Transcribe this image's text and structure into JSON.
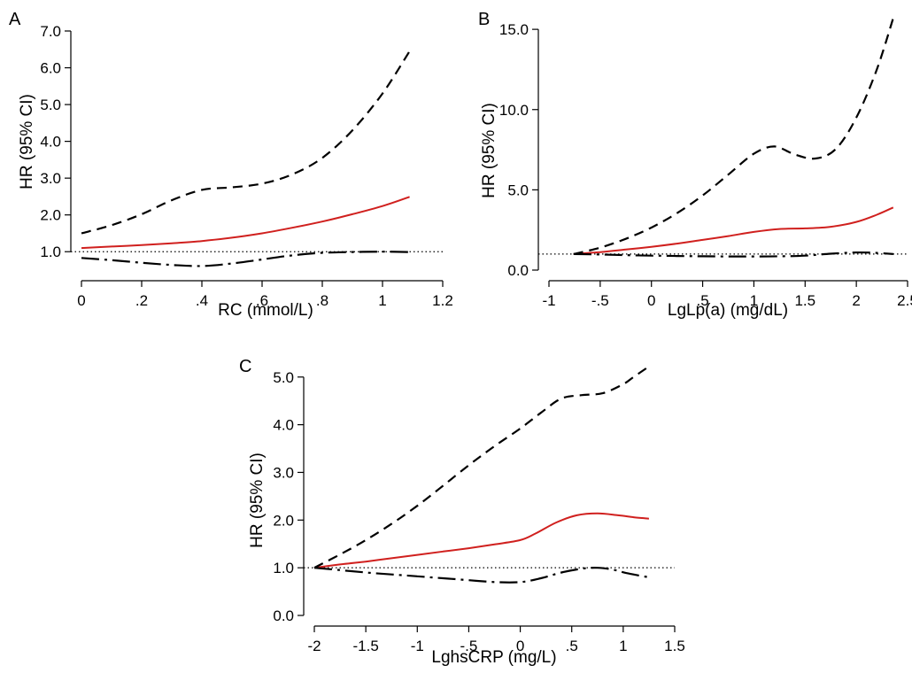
{
  "chart_data": [
    {
      "type": "line",
      "panel_label": "A",
      "xlabel": "RC (mmol/L)",
      "ylabel": "HR (95% CI)",
      "xlim": [
        0,
        1.2
      ],
      "ylim": [
        0.5,
        7.0
      ],
      "xticks": [
        {
          "v": 0,
          "label": "0"
        },
        {
          "v": 0.2,
          "label": ".2"
        },
        {
          "v": 0.4,
          "label": ".4"
        },
        {
          "v": 0.6,
          "label": ".6"
        },
        {
          "v": 0.8,
          "label": ".8"
        },
        {
          "v": 1.0,
          "label": "1"
        },
        {
          "v": 1.2,
          "label": "1.2"
        }
      ],
      "yticks": [
        {
          "v": 1,
          "label": "1.0"
        },
        {
          "v": 2,
          "label": "2.0"
        },
        {
          "v": 3,
          "label": "3.0"
        },
        {
          "v": 4,
          "label": "4.0"
        },
        {
          "v": 5,
          "label": "5.0"
        },
        {
          "v": 6,
          "label": "6.0"
        },
        {
          "v": 7,
          "label": "7.0"
        }
      ],
      "reference_line": 1.0,
      "series": [
        {
          "role": "hr",
          "style": "solid",
          "color": "#d0201e",
          "x": [
            0,
            0.1,
            0.2,
            0.3,
            0.4,
            0.5,
            0.6,
            0.7,
            0.8,
            0.9,
            1.0,
            1.09
          ],
          "y": [
            1.1,
            1.14,
            1.18,
            1.23,
            1.29,
            1.38,
            1.5,
            1.65,
            1.82,
            2.02,
            2.24,
            2.49
          ]
        },
        {
          "role": "upper",
          "style": "dashed",
          "color": "#000000",
          "x": [
            0,
            0.1,
            0.2,
            0.3,
            0.4,
            0.5,
            0.6,
            0.7,
            0.8,
            0.9,
            1.0,
            1.09
          ],
          "y": [
            1.5,
            1.72,
            2.02,
            2.4,
            2.68,
            2.75,
            2.85,
            3.1,
            3.55,
            4.3,
            5.3,
            6.45
          ]
        },
        {
          "role": "lower",
          "style": "dashdot",
          "color": "#000000",
          "x": [
            0,
            0.1,
            0.2,
            0.3,
            0.4,
            0.5,
            0.6,
            0.7,
            0.8,
            0.9,
            1.0,
            1.09
          ],
          "y": [
            0.83,
            0.77,
            0.7,
            0.64,
            0.61,
            0.68,
            0.79,
            0.9,
            0.97,
            0.99,
            1.0,
            0.99
          ]
        }
      ]
    },
    {
      "type": "line",
      "panel_label": "B",
      "xlabel": "LgLp(a) (mg/dL)",
      "ylabel": "HR (95% CI)",
      "xlim": [
        -1,
        2.5
      ],
      "ylim": [
        0,
        16
      ],
      "xticks": [
        {
          "v": -1,
          "label": "-1"
        },
        {
          "v": -0.5,
          "label": "-.5"
        },
        {
          "v": 0,
          "label": "0"
        },
        {
          "v": 0.5,
          "label": ".5"
        },
        {
          "v": 1,
          "label": "1"
        },
        {
          "v": 1.5,
          "label": "1.5"
        },
        {
          "v": 2,
          "label": "2"
        },
        {
          "v": 2.5,
          "label": "2.5"
        }
      ],
      "yticks": [
        {
          "v": 0,
          "label": "0.0"
        },
        {
          "v": 5,
          "label": "5.0"
        },
        {
          "v": 10,
          "label": "10.0"
        },
        {
          "v": 15,
          "label": "15.0"
        }
      ],
      "reference_line": 1.0,
      "series": [
        {
          "role": "hr",
          "style": "solid",
          "color": "#d0201e",
          "x": [
            -0.76,
            -0.5,
            -0.25,
            0,
            0.25,
            0.5,
            0.75,
            1.0,
            1.25,
            1.5,
            1.75,
            2.0,
            2.2,
            2.36
          ],
          "y": [
            1.0,
            1.12,
            1.28,
            1.45,
            1.65,
            1.88,
            2.12,
            2.38,
            2.56,
            2.6,
            2.7,
            3.0,
            3.45,
            3.9
          ]
        },
        {
          "role": "upper",
          "style": "dashed",
          "color": "#000000",
          "x": [
            -0.76,
            -0.5,
            -0.25,
            0,
            0.25,
            0.5,
            0.75,
            1.0,
            1.2,
            1.4,
            1.6,
            1.8,
            2.0,
            2.2,
            2.36
          ],
          "y": [
            1.0,
            1.4,
            1.95,
            2.65,
            3.55,
            4.65,
            5.95,
            7.25,
            7.7,
            7.2,
            6.95,
            7.55,
            9.5,
            12.5,
            15.7
          ]
        },
        {
          "role": "lower",
          "style": "dashdot",
          "color": "#000000",
          "x": [
            -0.76,
            -0.5,
            -0.25,
            0,
            0.25,
            0.5,
            0.75,
            1.0,
            1.25,
            1.5,
            1.75,
            2.0,
            2.2,
            2.36
          ],
          "y": [
            1.0,
            0.97,
            0.93,
            0.9,
            0.88,
            0.86,
            0.85,
            0.85,
            0.86,
            0.9,
            1.02,
            1.1,
            1.07,
            1.0
          ]
        }
      ]
    },
    {
      "type": "line",
      "panel_label": "C",
      "xlabel": "LghsCRP (mg/L)",
      "ylabel": "HR (95% CI)",
      "xlim": [
        -2,
        1.5
      ],
      "ylim": [
        0,
        5.2
      ],
      "xticks": [
        {
          "v": -2,
          "label": "-2"
        },
        {
          "v": -1.5,
          "label": "-1.5"
        },
        {
          "v": -1,
          "label": "-1"
        },
        {
          "v": -0.5,
          "label": "-.5"
        },
        {
          "v": 0,
          "label": "0"
        },
        {
          "v": 0.5,
          "label": ".5"
        },
        {
          "v": 1,
          "label": "1"
        },
        {
          "v": 1.5,
          "label": "1.5"
        }
      ],
      "yticks": [
        {
          "v": 0,
          "label": "0.0"
        },
        {
          "v": 1,
          "label": "1.0"
        },
        {
          "v": 2,
          "label": "2.0"
        },
        {
          "v": 3,
          "label": "3.0"
        },
        {
          "v": 4,
          "label": "4.0"
        },
        {
          "v": 5,
          "label": "5.0"
        }
      ],
      "reference_line": 1.0,
      "series": [
        {
          "role": "hr",
          "style": "solid",
          "color": "#d0201e",
          "x": [
            -2,
            -1.75,
            -1.5,
            -1.25,
            -1.0,
            -0.75,
            -0.5,
            -0.25,
            0,
            0.15,
            0.35,
            0.55,
            0.75,
            0.95,
            1.1,
            1.25
          ],
          "y": [
            1.0,
            1.07,
            1.13,
            1.2,
            1.27,
            1.34,
            1.41,
            1.49,
            1.58,
            1.72,
            1.95,
            2.1,
            2.14,
            2.1,
            2.06,
            2.03
          ]
        },
        {
          "role": "upper",
          "style": "dashed",
          "color": "#000000",
          "x": [
            -2,
            -1.75,
            -1.5,
            -1.25,
            -1.0,
            -0.75,
            -0.5,
            -0.25,
            0,
            0.2,
            0.4,
            0.6,
            0.8,
            1.0,
            1.1,
            1.25
          ],
          "y": [
            1.0,
            1.28,
            1.58,
            1.92,
            2.3,
            2.72,
            3.15,
            3.55,
            3.92,
            4.25,
            4.55,
            4.62,
            4.66,
            4.85,
            5.0,
            5.22
          ]
        },
        {
          "role": "lower",
          "style": "dashdot",
          "color": "#000000",
          "x": [
            -2,
            -1.75,
            -1.5,
            -1.25,
            -1.0,
            -0.75,
            -0.5,
            -0.25,
            0,
            0.2,
            0.4,
            0.6,
            0.75,
            0.9,
            1.05,
            1.25
          ],
          "y": [
            1.0,
            0.95,
            0.9,
            0.86,
            0.82,
            0.78,
            0.74,
            0.7,
            0.7,
            0.78,
            0.9,
            0.98,
            1.0,
            0.96,
            0.88,
            0.8
          ]
        }
      ]
    }
  ]
}
